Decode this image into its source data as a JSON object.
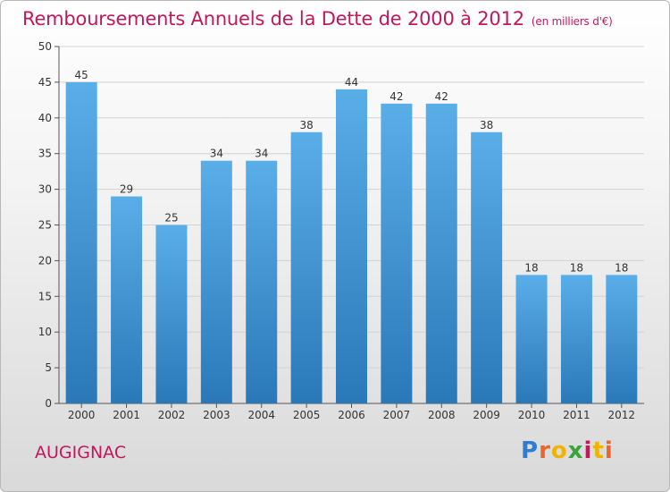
{
  "chart_data": {
    "type": "bar",
    "title": "Remboursements Annuels de la Dette de 2000 à 2012",
    "unit_note": "(en milliers d'€)",
    "categories": [
      "2000",
      "2001",
      "2002",
      "2003",
      "2004",
      "2005",
      "2006",
      "2007",
      "2008",
      "2009",
      "2010",
      "2011",
      "2012"
    ],
    "values": [
      45,
      29,
      25,
      34,
      34,
      38,
      44,
      42,
      42,
      38,
      18,
      18,
      18
    ],
    "ylim": [
      0,
      50
    ],
    "yticks": [
      0,
      5,
      10,
      15,
      20,
      25,
      30,
      35,
      40,
      45,
      50
    ],
    "grid": true,
    "bar_color": "#3a8fd6"
  },
  "commune": "AUGIGNAC",
  "logo_text": "Proxiti"
}
